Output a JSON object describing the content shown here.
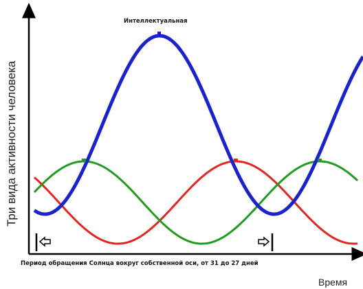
{
  "title": "Интеллектуальная",
  "y_axis_label": "Три вида активности человека",
  "period_caption": "Период обращения Солнца вокруг собственной оси, от 31 до 27 дней",
  "x_axis_label": "Время"
}
